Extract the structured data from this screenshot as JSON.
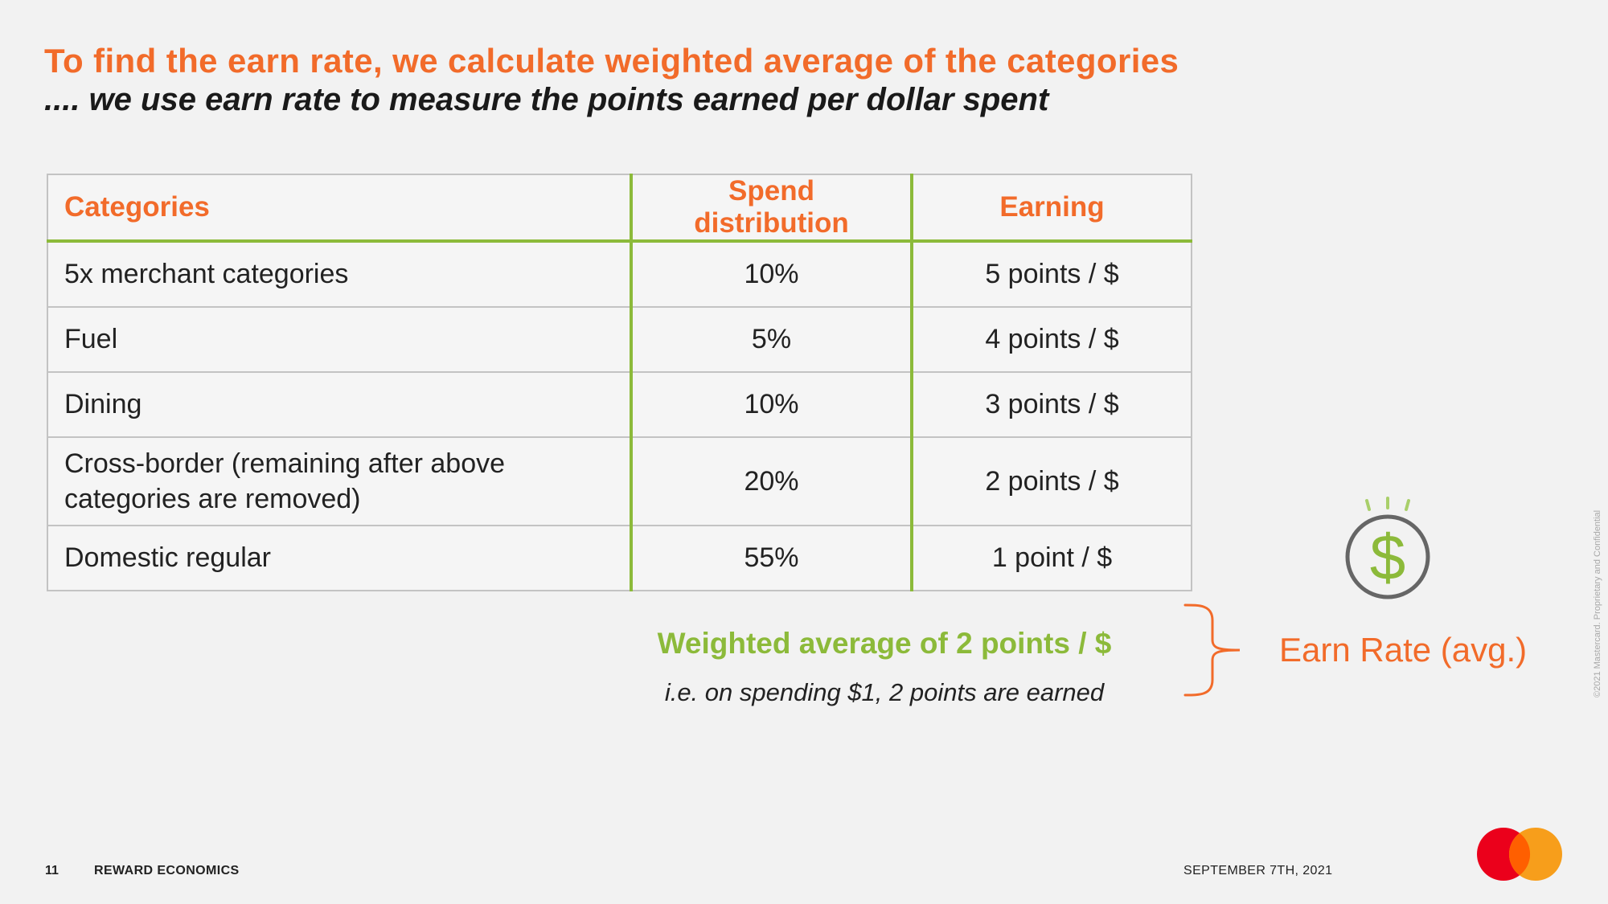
{
  "title": "To find the earn rate, we calculate weighted average of the categories",
  "subtitle": ".... we use earn rate to measure the points earned per dollar spent",
  "table": {
    "headers": [
      "Categories",
      "Spend distribution",
      "Earning"
    ],
    "rows": [
      {
        "category": "5x merchant categories",
        "spend": "10%",
        "earning": "5 points / $"
      },
      {
        "category": "Fuel",
        "spend": "5%",
        "earning": "4 points / $"
      },
      {
        "category": "Dining",
        "spend": "10%",
        "earning": "3 points / $"
      },
      {
        "category": "Cross-border (remaining after above categories are removed)",
        "spend": "20%",
        "earning": "2 points / $"
      },
      {
        "category": "Domestic regular",
        "spend": "55%",
        "earning": "1 point / $"
      }
    ]
  },
  "summary": {
    "weighted": "Weighted average of 2 points / $",
    "note": "i.e. on spending $1, 2 points are earned",
    "earn_rate_label": "Earn Rate (avg.)"
  },
  "icons": {
    "coin": "dollar-coin-icon",
    "brace": "right-brace-icon",
    "logo": "mastercard-logo"
  },
  "colors": {
    "accent_orange": "#f26b2a",
    "accent_green": "#8cba3a",
    "mastercard_red": "#eb001b",
    "mastercard_yellow": "#f79e1b"
  },
  "footer": {
    "page_number": "11",
    "section": "REWARD ECONOMICS",
    "date": "SEPTEMBER 7TH, 2021",
    "copyright": "©2021 Mastercard. Proprietary and Confidential"
  }
}
